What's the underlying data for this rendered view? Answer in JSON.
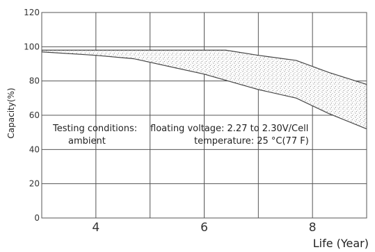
{
  "chart_data": {
    "type": "area",
    "title": "",
    "xlabel": "Life (Year)",
    "ylabel": "Capacity(%)",
    "xlim": [
      3,
      9
    ],
    "ylim": [
      0,
      120
    ],
    "y_ticks": [
      "0",
      "20",
      "40",
      "60",
      "80",
      "100",
      "120"
    ],
    "x_ticks": [
      {
        "value": 4,
        "label": "4"
      },
      {
        "value": 6,
        "label": "6"
      },
      {
        "value": 8,
        "label": "8"
      }
    ],
    "grid": true,
    "series": [
      {
        "x": [
          3.0,
          4.0,
          5.0,
          6.0,
          6.4,
          7.0,
          7.7,
          8.3,
          9.0
        ],
        "y": [
          98,
          98,
          98,
          98,
          98,
          95,
          92,
          85,
          78
        ]
      },
      {
        "x": [
          3.0,
          4.0,
          4.7,
          6.0,
          7.0,
          7.7,
          8.3,
          9.0
        ],
        "y": [
          97,
          95,
          93,
          84,
          75,
          70,
          61,
          52
        ]
      }
    ],
    "band_fill": "#aaaaaa",
    "line_color": "#444444",
    "annotations": [
      "Testing conditions:",
      "ambient",
      "floating voltage: 2.27 to 2.30V/Cell",
      "temperature: 25 °C(77 F)"
    ]
  }
}
